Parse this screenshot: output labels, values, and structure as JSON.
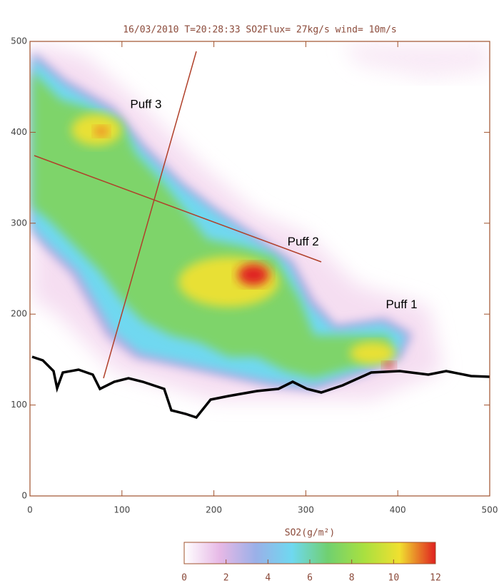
{
  "chart_data": {
    "type": "heatmap",
    "title": "16/03/2010 T=20:28:33 SO2Flux= 27kg/s wind= 10m/s",
    "xlim": [
      0,
      500
    ],
    "ylim": [
      0,
      500
    ],
    "xticks": [
      0,
      100,
      200,
      300,
      400,
      500
    ],
    "yticks": [
      0,
      100,
      200,
      300,
      400,
      500
    ],
    "annotations": [
      {
        "text": "Puff 1",
        "x": 387,
        "y": 210
      },
      {
        "text": "Puff 2",
        "x": 280,
        "y": 279
      },
      {
        "text": "Puff 3",
        "x": 109,
        "y": 430
      }
    ],
    "colorbar": {
      "label": "SO2(g/m²)",
      "lim": [
        0,
        12
      ],
      "ticks": [
        0,
        2,
        4,
        6,
        8,
        10,
        12
      ],
      "colors": [
        "#ffffff",
        "#e6b8e6",
        "#9ab0e8",
        "#6fd8f0",
        "#70d070",
        "#a8e040",
        "#f0e030",
        "#e02020"
      ]
    }
  }
}
